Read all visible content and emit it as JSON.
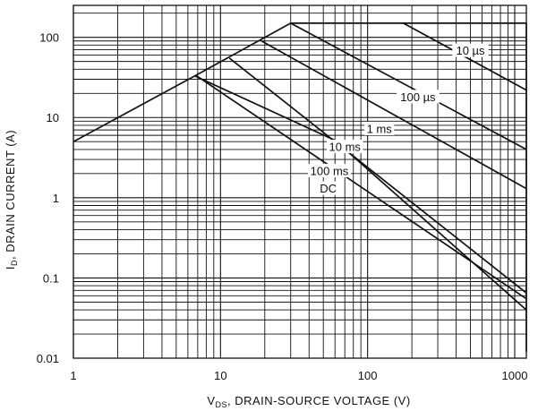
{
  "chart_data": {
    "type": "line",
    "title": "",
    "xlabel": {
      "main": "V",
      "sub": "DS",
      "rest": ", DRAIN-SOURCE  VOLTAGE  (V)"
    },
    "ylabel": {
      "main": "I",
      "sub": "D",
      "rest": ", DRAIN CURRENT  (A)"
    },
    "xscale": "log",
    "yscale": "log",
    "xlim": [
      1,
      1200
    ],
    "ylim": [
      0.01,
      250
    ],
    "grid": true,
    "x_ticks": [
      {
        "value": 1,
        "label": "1"
      },
      {
        "value": 10,
        "label": "10"
      },
      {
        "value": 100,
        "label": "100"
      },
      {
        "value": 1000,
        "label": "1000"
      }
    ],
    "y_ticks": [
      {
        "value": 0.01,
        "label": "0.01"
      },
      {
        "value": 0.1,
        "label": "0.1"
      },
      {
        "value": 1,
        "label": "1"
      },
      {
        "value": 10,
        "label": "10"
      },
      {
        "value": 100,
        "label": "100"
      }
    ],
    "series": [
      {
        "name": "",
        "x": [
          1,
          6.7,
          30,
          1200,
          1200
        ],
        "y": [
          5,
          33,
          150,
          150,
          0.012
        ]
      },
      {
        "name": "10 µs",
        "x": [
          175,
          1200
        ],
        "y": [
          150,
          22
        ]
      },
      {
        "name": "100 µs",
        "x": [
          30,
          1200
        ],
        "y": [
          150,
          4
        ]
      },
      {
        "name": "1 ms",
        "x": [
          19,
          1200
        ],
        "y": [
          90,
          1.3
        ]
      },
      {
        "name": "10 ms",
        "x": [
          11.5,
          1200
        ],
        "y": [
          55,
          0.065
        ]
      },
      {
        "name": "100 ms",
        "x": [
          6.9,
          1200
        ],
        "y": [
          33,
          0.055
        ]
      },
      {
        "name": "DC",
        "x": [
          6.7,
          60,
          1200
        ],
        "y": [
          33,
          5.2,
          0.04
        ]
      }
    ],
    "annotations": [
      {
        "text": "10 µs",
        "x": 500,
        "y": 68
      },
      {
        "text": "100 µs",
        "x": 220,
        "y": 18
      },
      {
        "text": "1 ms",
        "x": 120,
        "y": 7.2
      },
      {
        "text": "10 ms",
        "x": 70,
        "y": 4.3
      },
      {
        "text": "100 ms",
        "x": 55,
        "y": 2.15
      },
      {
        "text": "DC",
        "x": 54,
        "y": 1.3
      }
    ]
  }
}
